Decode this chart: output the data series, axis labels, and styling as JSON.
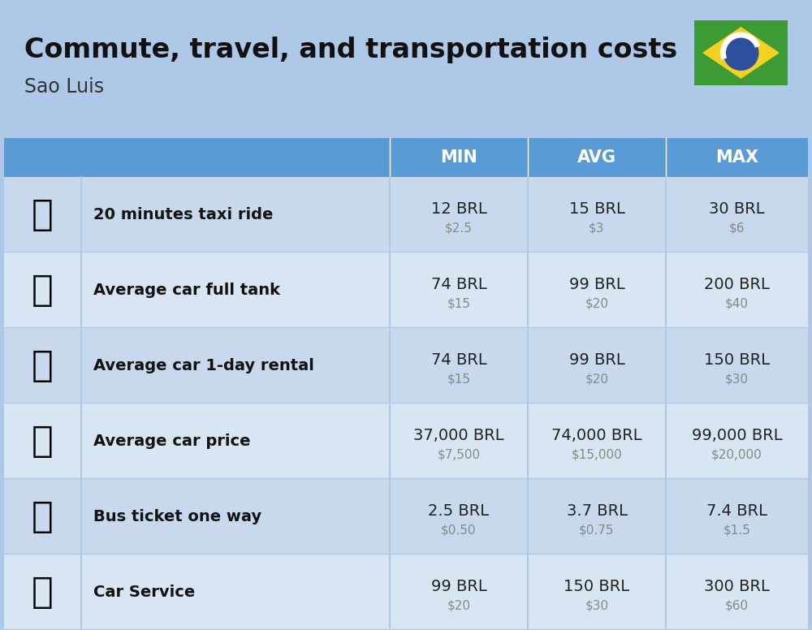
{
  "title": "Commute, travel, and transportation costs",
  "subtitle": "Sao Luis",
  "background_color": "#aec8e8",
  "header_bg_color": "#5b9bd5",
  "header_text_color": "#ffffff",
  "row_bg_colors": [
    "#c8d9ed",
    "#d8e6f3"
  ],
  "col_header_labels": [
    "MIN",
    "AVG",
    "MAX"
  ],
  "rows": [
    {
      "label": "20 minutes taxi ride",
      "min_brl": "12 BRL",
      "min_usd": "$2.5",
      "avg_brl": "15 BRL",
      "avg_usd": "$3",
      "max_brl": "30 BRL",
      "max_usd": "$6"
    },
    {
      "label": "Average car full tank",
      "min_brl": "74 BRL",
      "min_usd": "$15",
      "avg_brl": "99 BRL",
      "avg_usd": "$20",
      "max_brl": "200 BRL",
      "max_usd": "$40"
    },
    {
      "label": "Average car 1-day rental",
      "min_brl": "74 BRL",
      "min_usd": "$15",
      "avg_brl": "99 BRL",
      "avg_usd": "$20",
      "max_brl": "150 BRL",
      "max_usd": "$30"
    },
    {
      "label": "Average car price",
      "min_brl": "37,000 BRL",
      "min_usd": "$7,500",
      "avg_brl": "74,000 BRL",
      "avg_usd": "$15,000",
      "max_brl": "99,000 BRL",
      "max_usd": "$20,000"
    },
    {
      "label": "Bus ticket one way",
      "min_brl": "2.5 BRL",
      "min_usd": "$0.50",
      "avg_brl": "3.7 BRL",
      "avg_usd": "$0.75",
      "max_brl": "7.4 BRL",
      "max_usd": "$1.5"
    },
    {
      "label": "Car Service",
      "min_brl": "99 BRL",
      "min_usd": "$20",
      "avg_brl": "150 BRL",
      "avg_usd": "$30",
      "max_brl": "300 BRL",
      "max_usd": "$60"
    }
  ],
  "title_fontsize": 24,
  "subtitle_fontsize": 17,
  "header_fontsize": 15,
  "label_fontsize": 14,
  "value_fontsize": 14,
  "usd_fontsize": 11,
  "usd_color": "#888888",
  "label_color": "#111111",
  "value_color": "#222222"
}
